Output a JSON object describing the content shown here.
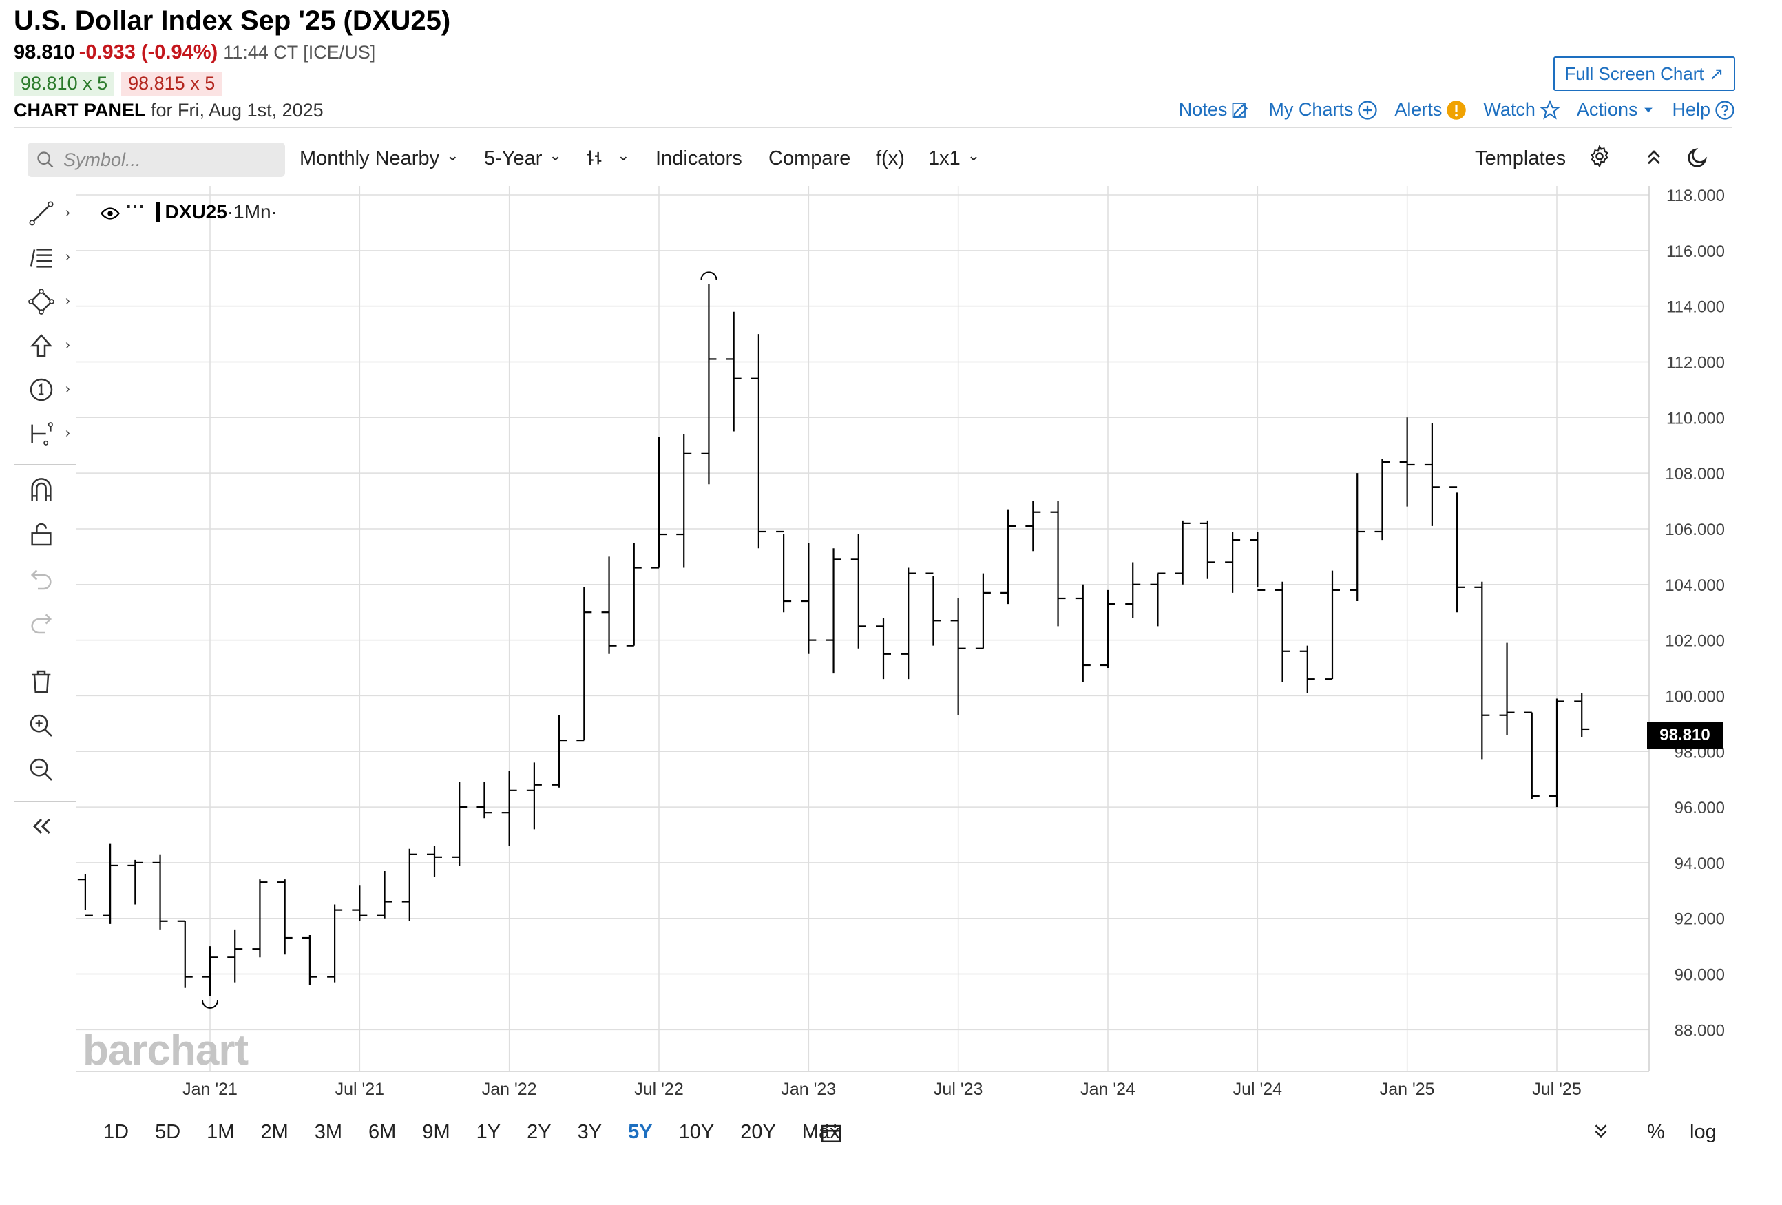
{
  "header": {
    "title": "U.S. Dollar Index Sep '25 (DXU25)",
    "last": "98.810",
    "change": "-0.933 (-0.94%)",
    "time": "11:44 CT [ICE/US]",
    "bid": "98.810 x 5",
    "ask": "98.815 x 5",
    "panel_label": "CHART PANEL",
    "panel_date": "for Fri, Aug 1st, 2025",
    "fullscreen": "Full Screen Chart ↗",
    "links": {
      "notes": "Notes",
      "my_charts": "My Charts",
      "alerts": "Alerts",
      "watch": "Watch",
      "actions": "Actions",
      "help": "Help"
    }
  },
  "toolbar": {
    "search_placeholder": "Symbol...",
    "aggregation": "Monthly Nearby",
    "period": "5-Year",
    "indicators": "Indicators",
    "compare": "Compare",
    "fx": "f(x)",
    "layout": "1x1",
    "templates": "Templates"
  },
  "legend": {
    "symbol": "DXU25",
    "interval": "·1Mn·"
  },
  "last_badge": "98.810",
  "watermark": "barchart",
  "bottom": {
    "ranges": [
      "1D",
      "5D",
      "1M",
      "2M",
      "3M",
      "6M",
      "9M",
      "1Y",
      "2Y",
      "3Y",
      "5Y",
      "10Y",
      "20Y",
      "Max"
    ],
    "selected": "5Y",
    "percent": "%",
    "log": "log"
  },
  "colors": {
    "accent": "#1d6fc0",
    "negative": "#c4161c",
    "bar": "#000000",
    "grid": "#d9d9d9"
  },
  "chart_data": {
    "type": "ohlc",
    "title": "U.S. Dollar Index Sep '25 (DXU25)",
    "interval": "monthly",
    "ylim": [
      86.5,
      118.0
    ],
    "yticks": [
      "118.000",
      "116.000",
      "114.000",
      "112.000",
      "110.000",
      "108.000",
      "106.000",
      "104.000",
      "102.000",
      "100.000",
      "98.000",
      "96.000",
      "94.000",
      "92.000",
      "90.000",
      "88.000"
    ],
    "xtick_labels": [
      "Jan '21",
      "Jul '21",
      "Jan '22",
      "Jul '22",
      "Jan '23",
      "Jul '23",
      "Jan '24",
      "Jul '24",
      "Jan '25",
      "Jul '25"
    ],
    "grid": true,
    "bars": [
      {
        "d": "2020-08",
        "o": 93.4,
        "h": 93.6,
        "l": 92.3,
        "c": 92.1
      },
      {
        "d": "2020-09",
        "o": 92.1,
        "h": 94.7,
        "l": 91.8,
        "c": 93.9
      },
      {
        "d": "2020-10",
        "o": 93.9,
        "h": 94.1,
        "l": 92.5,
        "c": 94.0
      },
      {
        "d": "2020-11",
        "o": 94.0,
        "h": 94.3,
        "l": 91.6,
        "c": 91.9
      },
      {
        "d": "2020-12",
        "o": 91.9,
        "h": 91.9,
        "l": 89.5,
        "c": 89.9
      },
      {
        "d": "2021-01",
        "o": 89.9,
        "h": 91.0,
        "l": 89.2,
        "c": 90.6
      },
      {
        "d": "2021-02",
        "o": 90.6,
        "h": 91.6,
        "l": 89.7,
        "c": 90.9
      },
      {
        "d": "2021-03",
        "o": 90.9,
        "h": 93.4,
        "l": 90.6,
        "c": 93.3
      },
      {
        "d": "2021-04",
        "o": 93.3,
        "h": 93.4,
        "l": 90.7,
        "c": 91.3
      },
      {
        "d": "2021-05",
        "o": 91.3,
        "h": 91.4,
        "l": 89.6,
        "c": 89.9
      },
      {
        "d": "2021-06",
        "o": 89.9,
        "h": 92.5,
        "l": 89.7,
        "c": 92.3
      },
      {
        "d": "2021-07",
        "o": 92.3,
        "h": 93.2,
        "l": 91.9,
        "c": 92.1
      },
      {
        "d": "2021-08",
        "o": 92.1,
        "h": 93.7,
        "l": 92.0,
        "c": 92.6
      },
      {
        "d": "2021-09",
        "o": 92.6,
        "h": 94.5,
        "l": 91.9,
        "c": 94.3
      },
      {
        "d": "2021-10",
        "o": 94.3,
        "h": 94.6,
        "l": 93.5,
        "c": 94.2
      },
      {
        "d": "2021-11",
        "o": 94.2,
        "h": 96.9,
        "l": 93.9,
        "c": 96.0
      },
      {
        "d": "2021-12",
        "o": 96.0,
        "h": 96.9,
        "l": 95.6,
        "c": 95.8
      },
      {
        "d": "2022-01",
        "o": 95.8,
        "h": 97.3,
        "l": 94.6,
        "c": 96.6
      },
      {
        "d": "2022-02",
        "o": 96.6,
        "h": 97.6,
        "l": 95.2,
        "c": 96.8
      },
      {
        "d": "2022-03",
        "o": 96.8,
        "h": 99.3,
        "l": 96.7,
        "c": 98.4
      },
      {
        "d": "2022-04",
        "o": 98.4,
        "h": 103.9,
        "l": 98.4,
        "c": 103.0
      },
      {
        "d": "2022-05",
        "o": 103.0,
        "h": 105.0,
        "l": 101.5,
        "c": 101.8
      },
      {
        "d": "2022-06",
        "o": 101.8,
        "h": 105.5,
        "l": 101.8,
        "c": 104.6
      },
      {
        "d": "2022-07",
        "o": 104.6,
        "h": 109.3,
        "l": 104.6,
        "c": 105.8
      },
      {
        "d": "2022-08",
        "o": 105.8,
        "h": 109.4,
        "l": 104.6,
        "c": 108.7
      },
      {
        "d": "2022-09",
        "o": 108.7,
        "h": 114.8,
        "l": 107.6,
        "c": 112.1
      },
      {
        "d": "2022-10",
        "o": 112.1,
        "h": 113.8,
        "l": 109.5,
        "c": 111.4
      },
      {
        "d": "2022-11",
        "o": 111.4,
        "h": 113.0,
        "l": 105.3,
        "c": 105.9
      },
      {
        "d": "2022-12",
        "o": 105.9,
        "h": 105.8,
        "l": 103.0,
        "c": 103.4
      },
      {
        "d": "2023-01",
        "o": 103.4,
        "h": 105.5,
        "l": 101.5,
        "c": 102.0
      },
      {
        "d": "2023-02",
        "o": 102.0,
        "h": 105.3,
        "l": 100.8,
        "c": 104.9
      },
      {
        "d": "2023-03",
        "o": 104.9,
        "h": 105.8,
        "l": 101.7,
        "c": 102.5
      },
      {
        "d": "2023-04",
        "o": 102.5,
        "h": 102.8,
        "l": 100.6,
        "c": 101.5
      },
      {
        "d": "2023-05",
        "o": 101.5,
        "h": 104.6,
        "l": 100.6,
        "c": 104.4
      },
      {
        "d": "2023-06",
        "o": 104.4,
        "h": 104.3,
        "l": 101.8,
        "c": 102.7
      },
      {
        "d": "2023-07",
        "o": 102.7,
        "h": 103.5,
        "l": 99.3,
        "c": 101.7
      },
      {
        "d": "2023-08",
        "o": 101.7,
        "h": 104.4,
        "l": 101.7,
        "c": 103.7
      },
      {
        "d": "2023-09",
        "o": 103.7,
        "h": 106.7,
        "l": 103.3,
        "c": 106.1
      },
      {
        "d": "2023-10",
        "o": 106.1,
        "h": 107.0,
        "l": 105.2,
        "c": 106.6
      },
      {
        "d": "2023-11",
        "o": 106.6,
        "h": 107.0,
        "l": 102.5,
        "c": 103.5
      },
      {
        "d": "2023-12",
        "o": 103.5,
        "h": 104.0,
        "l": 100.5,
        "c": 101.1
      },
      {
        "d": "2024-01",
        "o": 101.1,
        "h": 103.8,
        "l": 101.0,
        "c": 103.3
      },
      {
        "d": "2024-02",
        "o": 103.3,
        "h": 104.8,
        "l": 102.8,
        "c": 104.0
      },
      {
        "d": "2024-03",
        "o": 104.0,
        "h": 104.4,
        "l": 102.5,
        "c": 104.4
      },
      {
        "d": "2024-04",
        "o": 104.4,
        "h": 106.3,
        "l": 104.0,
        "c": 106.2
      },
      {
        "d": "2024-05",
        "o": 106.2,
        "h": 106.3,
        "l": 104.2,
        "c": 104.8
      },
      {
        "d": "2024-06",
        "o": 104.8,
        "h": 105.9,
        "l": 103.7,
        "c": 105.6
      },
      {
        "d": "2024-07",
        "o": 105.6,
        "h": 105.9,
        "l": 103.9,
        "c": 103.8
      },
      {
        "d": "2024-08",
        "o": 103.8,
        "h": 104.1,
        "l": 100.5,
        "c": 101.6
      },
      {
        "d": "2024-09",
        "o": 101.6,
        "h": 101.8,
        "l": 100.1,
        "c": 100.6
      },
      {
        "d": "2024-10",
        "o": 100.6,
        "h": 104.5,
        "l": 100.6,
        "c": 103.8
      },
      {
        "d": "2024-11",
        "o": 103.8,
        "h": 108.0,
        "l": 103.4,
        "c": 105.9
      },
      {
        "d": "2024-12",
        "o": 105.9,
        "h": 108.5,
        "l": 105.6,
        "c": 108.4
      },
      {
        "d": "2025-01",
        "o": 108.4,
        "h": 110.0,
        "l": 106.8,
        "c": 108.3
      },
      {
        "d": "2025-02",
        "o": 108.3,
        "h": 109.8,
        "l": 106.1,
        "c": 107.5
      },
      {
        "d": "2025-03",
        "o": 107.5,
        "h": 107.3,
        "l": 103.0,
        "c": 103.9
      },
      {
        "d": "2025-04",
        "o": 103.9,
        "h": 104.1,
        "l": 97.7,
        "c": 99.3
      },
      {
        "d": "2025-05",
        "o": 99.3,
        "h": 101.9,
        "l": 98.6,
        "c": 99.4
      },
      {
        "d": "2025-06",
        "o": 99.4,
        "h": 99.4,
        "l": 96.3,
        "c": 96.4
      },
      {
        "d": "2025-07",
        "o": 96.4,
        "h": 99.9,
        "l": 96.0,
        "c": 99.8
      },
      {
        "d": "2025-08",
        "o": 99.8,
        "h": 100.1,
        "l": 98.5,
        "c": 98.8
      }
    ],
    "last": 98.81
  }
}
